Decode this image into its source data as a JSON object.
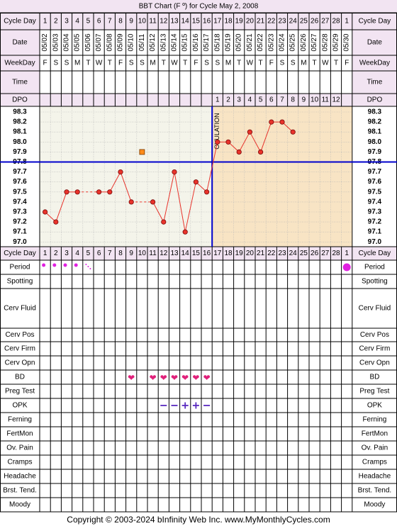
{
  "title": "BBT Chart (F º) for Cycle May 2, 2008",
  "footer": "Copyright © 2003-2024 bInfinity Web Inc.    www.MyMonthlyCycles.com",
  "row_labels": {
    "cycle_day": "Cycle Day",
    "date": "Date",
    "weekday": "WeekDay",
    "time": "Time",
    "dpo": "DPO",
    "period": "Period",
    "spotting": "Spotting",
    "cerv_fluid": "Cerv Fluid",
    "cerv_pos": "Cerv Pos",
    "cerv_firm": "Cerv Firm",
    "cerv_opn": "Cerv Opn",
    "bd": "BD",
    "preg_test": "Preg Test",
    "opk": "OPK",
    "ferning": "Ferning",
    "fertmon": "FertMon",
    "ov_pain": "Ov. Pain",
    "cramps": "Cramps",
    "headache": "Headache",
    "brst_tend": "Brst. Tend.",
    "moody": "Moody"
  },
  "cycle_days": [
    "1",
    "2",
    "3",
    "4",
    "5",
    "6",
    "7",
    "8",
    "9",
    "10",
    "11",
    "12",
    "13",
    "14",
    "15",
    "16",
    "17",
    "18",
    "19",
    "20",
    "21",
    "22",
    "23",
    "24",
    "25",
    "26",
    "27",
    "28",
    "1"
  ],
  "dates": [
    "05/02",
    "05/03",
    "05/04",
    "05/05",
    "05/06",
    "05/07",
    "05/08",
    "05/09",
    "05/10",
    "05/11",
    "05/12",
    "05/13",
    "05/14",
    "05/15",
    "05/16",
    "05/17",
    "05/18",
    "05/19",
    "05/20",
    "05/21",
    "05/22",
    "05/23",
    "05/24",
    "05/25",
    "05/26",
    "05/27",
    "05/28",
    "05/29",
    "05/30"
  ],
  "weekdays": [
    "F",
    "S",
    "S",
    "M",
    "T",
    "W",
    "T",
    "F",
    "S",
    "S",
    "M",
    "T",
    "W",
    "T",
    "F",
    "S",
    "S",
    "M",
    "T",
    "W",
    "T",
    "F",
    "S",
    "S",
    "M",
    "T",
    "W",
    "T",
    "F"
  ],
  "dpo": [
    "",
    "",
    "",
    "",
    "",
    "",
    "",
    "",
    "",
    "",
    "",
    "",
    "",
    "",
    "",
    "",
    "1",
    "2",
    "3",
    "4",
    "5",
    "6",
    "7",
    "8",
    "9",
    "10",
    "11",
    "12",
    ""
  ],
  "ovulation_label": "OVULATION",
  "bd_symbol": "❤",
  "opk_symbols": {
    "negative": "−",
    "positive": "+"
  },
  "colors": {
    "title_bg": "#f2e4f2",
    "header_bg": "#f2e4f2",
    "pre_ovulation_bg": "#f4f4ea",
    "post_ovulation_bg": "#f8e4c4",
    "temp_line": "#e8332b",
    "temp_point": "#e8332b",
    "coverline": "#0000cc",
    "ovulation_line": "#0000cc",
    "period_dot": "#e020e0",
    "bd_heart": "#e0207a",
    "opk_mark": "#5a2ac0",
    "marker_orange": "#ff8c1a"
  },
  "chart_data": {
    "type": "line",
    "title": "BBT Chart (F º) for Cycle May 2, 2008",
    "xlabel": "Cycle Day",
    "ylabel": "",
    "x": [
      1,
      2,
      3,
      4,
      5,
      6,
      7,
      8,
      9,
      10,
      11,
      12,
      13,
      14,
      15,
      16,
      17,
      18,
      19,
      20,
      21,
      22,
      23,
      24,
      25,
      26,
      27,
      28,
      29
    ],
    "ylim": [
      97.0,
      98.3
    ],
    "y_ticks": [
      "98.3",
      "98.2",
      "98.1",
      "98.0",
      "97.9",
      "97.8",
      "97.7",
      "97.6",
      "97.5",
      "97.4",
      "97.3",
      "97.2",
      "97.1",
      "97.0"
    ],
    "series": [
      {
        "values": [
          97.3,
          97.2,
          97.5,
          97.5,
          null,
          97.5,
          97.5,
          97.7,
          97.4,
          null,
          97.4,
          97.2,
          97.7,
          97.1,
          97.6,
          97.5,
          98.0,
          98.0,
          97.9,
          98.1,
          97.9,
          98.2,
          98.2,
          98.1,
          null,
          null,
          null,
          null,
          null
        ]
      }
    ],
    "excluded_points": [
      {
        "x": 10,
        "y": 97.9
      }
    ],
    "coverline": 97.8,
    "ovulation_day": 16,
    "grid": true
  },
  "period": {
    "dots": [
      1,
      2,
      3,
      4
    ],
    "spotting_mark": 5,
    "next_period_day": 29
  },
  "bd_days": [
    9,
    11,
    12,
    13,
    14,
    15,
    16
  ],
  "opk": {
    "negative_days": [
      12,
      13,
      16
    ],
    "positive_days": [
      14,
      15
    ]
  }
}
